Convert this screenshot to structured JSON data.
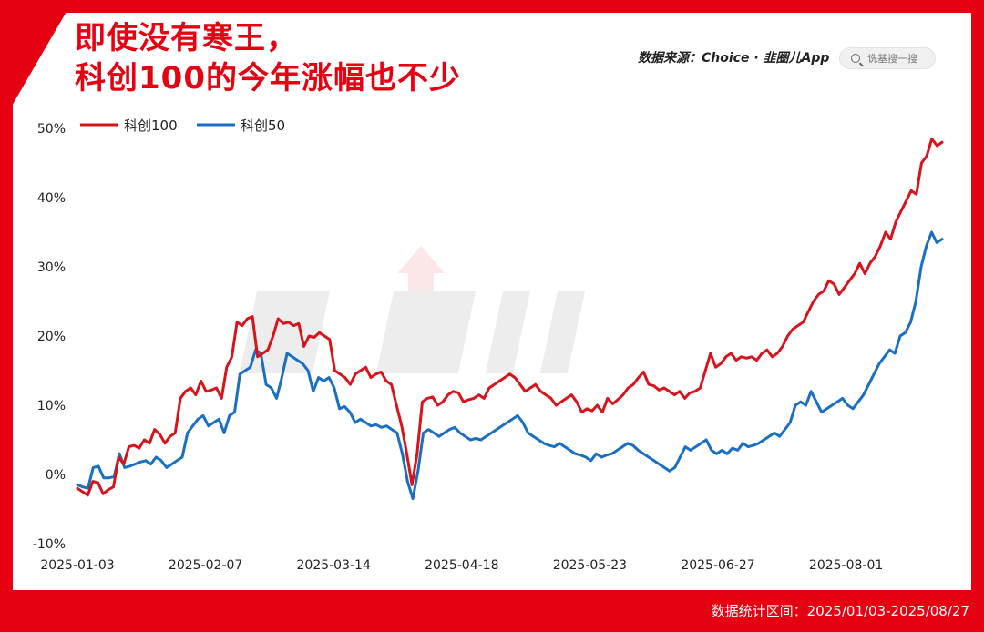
{
  "header": {
    "title_line1": "即使没有寒王，",
    "title_line2": "科创100的今年涨幅也不少"
  },
  "source": {
    "text": "数据来源：Choice · 韭圈儿App"
  },
  "search": {
    "placeholder": "诜基搜一搜"
  },
  "footer": {
    "range_text": "数据统计区间：2025/01/03-2025/08/27"
  },
  "colors": {
    "accent": "#e50012",
    "series_1": "#d7141b",
    "series_2": "#1a6fc4"
  },
  "chart_data": {
    "type": "line",
    "x_ticks": [
      "2025-01-03",
      "2025-02-07",
      "2025-03-14",
      "2025-04-18",
      "2025-05-23",
      "2025-06-27",
      "2025-08-01"
    ],
    "y_ticks": [
      "-10%",
      "0%",
      "10%",
      "20%",
      "30%",
      "40%",
      "50%"
    ],
    "ylim": [
      -10,
      50
    ],
    "grid": false,
    "legend_position": "top-left",
    "series": [
      {
        "name": "科创100",
        "values": [
          -2.0,
          -2.5,
          -3.0,
          -1.0,
          -1.2,
          -2.8,
          -2.2,
          -1.8,
          2.5,
          1.5,
          4.0,
          4.2,
          3.8,
          5.0,
          4.5,
          6.5,
          5.8,
          4.5,
          5.5,
          6.0,
          11.0,
          12.0,
          12.5,
          11.5,
          13.5,
          12.0,
          12.2,
          12.5,
          11.0,
          15.5,
          17.0,
          22.0,
          21.5,
          22.5,
          22.8,
          17.0,
          17.5,
          18.0,
          20.0,
          22.5,
          21.8,
          22.0,
          21.5,
          21.8,
          18.5,
          20.0,
          19.8,
          20.5,
          20.0,
          19.5,
          15.0,
          14.5,
          14.0,
          13.0,
          14.5,
          15.0,
          15.5,
          14.0,
          14.5,
          14.8,
          13.5,
          13.0,
          10.0,
          7.0,
          3.0,
          -1.5,
          3.0,
          10.5,
          11.0,
          11.2,
          10.0,
          10.5,
          11.5,
          12.0,
          11.8,
          10.5,
          10.8,
          11.0,
          11.5,
          11.0,
          12.5,
          13.0,
          13.5,
          14.0,
          14.5,
          14.0,
          13.0,
          12.0,
          12.5,
          13.0,
          12.0,
          11.5,
          11.0,
          10.0,
          10.5,
          11.0,
          11.5,
          10.5,
          9.0,
          9.5,
          9.2,
          10.0,
          9.0,
          11.0,
          10.2,
          10.8,
          11.5,
          12.5,
          13.0,
          14.0,
          14.8,
          13.0,
          12.8,
          12.2,
          12.5,
          12.0,
          11.5,
          12.0,
          11.0,
          11.8,
          12.0,
          12.5,
          15.0,
          17.5,
          15.5,
          16.0,
          17.0,
          17.5,
          16.5,
          17.0,
          16.8,
          17.0,
          16.5,
          17.5,
          18.0,
          17.0,
          17.5,
          18.5,
          20.0,
          21.0,
          21.5,
          22.0,
          23.5,
          25.0,
          26.0,
          26.5,
          28.0,
          27.5,
          26.0,
          27.0,
          28.0,
          29.0,
          30.5,
          29.0,
          30.5,
          31.5,
          33.0,
          35.0,
          34.0,
          36.5,
          38.0,
          39.5,
          41.0,
          40.5,
          45.0,
          46.0,
          48.5,
          47.5,
          48.0
        ]
      },
      {
        "name": "科创50",
        "values": [
          -1.5,
          -1.8,
          -2.0,
          1.0,
          1.2,
          -0.5,
          -0.5,
          -0.3,
          3.0,
          1.0,
          1.2,
          1.5,
          1.8,
          2.0,
          1.5,
          2.5,
          2.0,
          1.0,
          1.5,
          2.0,
          2.5,
          6.0,
          7.0,
          8.0,
          8.5,
          7.0,
          7.5,
          8.0,
          6.0,
          8.5,
          9.0,
          14.5,
          15.0,
          15.5,
          18.0,
          17.5,
          13.0,
          12.5,
          11.0,
          14.0,
          17.5,
          17.0,
          16.5,
          16.0,
          15.0,
          12.0,
          14.0,
          13.5,
          14.0,
          12.5,
          9.5,
          9.8,
          9.0,
          7.5,
          8.0,
          7.5,
          7.0,
          7.2,
          6.8,
          7.0,
          6.5,
          6.0,
          3.0,
          -1.0,
          -3.5,
          0.5,
          6.0,
          6.5,
          6.0,
          5.5,
          6.0,
          6.5,
          6.8,
          6.0,
          5.5,
          5.0,
          5.2,
          5.0,
          5.5,
          6.0,
          6.5,
          7.0,
          7.5,
          8.0,
          8.5,
          7.5,
          6.0,
          5.5,
          5.0,
          4.5,
          4.2,
          4.0,
          4.5,
          4.0,
          3.5,
          3.0,
          2.8,
          2.5,
          2.0,
          3.0,
          2.5,
          2.8,
          3.0,
          3.5,
          4.0,
          4.5,
          4.2,
          3.5,
          3.0,
          2.5,
          2.0,
          1.5,
          1.0,
          0.5,
          1.0,
          2.5,
          4.0,
          3.5,
          4.0,
          4.5,
          5.0,
          3.5,
          3.0,
          3.5,
          3.0,
          3.8,
          3.5,
          4.5,
          4.0,
          4.2,
          4.5,
          5.0,
          5.5,
          6.0,
          5.5,
          6.5,
          7.5,
          10.0,
          10.5,
          10.0,
          12.0,
          10.5,
          9.0,
          9.5,
          10.0,
          10.5,
          11.0,
          10.0,
          9.5,
          10.5,
          11.5,
          13.0,
          14.5,
          16.0,
          17.0,
          18.0,
          17.5,
          20.0,
          20.5,
          22.0,
          25.0,
          30.0,
          33.0,
          35.0,
          33.5,
          34.0
        ]
      }
    ]
  }
}
